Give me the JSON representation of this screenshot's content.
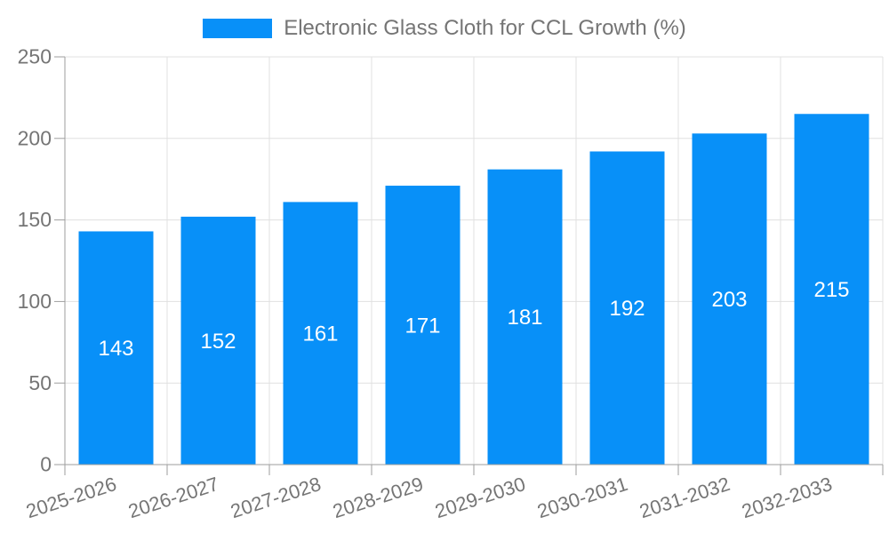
{
  "legend": {
    "series_label": "Electronic Glass Cloth for CCL Growth (%)"
  },
  "chart_data": {
    "type": "bar",
    "title": "Electronic Glass Cloth for CCL Growth (%)",
    "categories": [
      "2025-2026",
      "2026-2027",
      "2027-2028",
      "2028-2029",
      "2029-2030",
      "2030-2031",
      "2031-2032",
      "2032-2033"
    ],
    "values": [
      143,
      152,
      161,
      171,
      181,
      192,
      203,
      215
    ],
    "xlabel": "",
    "ylabel": "",
    "ylim": [
      0,
      250
    ],
    "yticks": [
      0,
      50,
      100,
      150,
      200,
      250
    ],
    "grid": true,
    "legend_position": "top",
    "bar_color": "#0890F8",
    "bar_label_color": "#ffffff",
    "grid_color": "#e0e0e0",
    "axis_color": "#9e9e9e",
    "tick_label_color": "#757575",
    "x_label_rotation_deg": -18
  }
}
